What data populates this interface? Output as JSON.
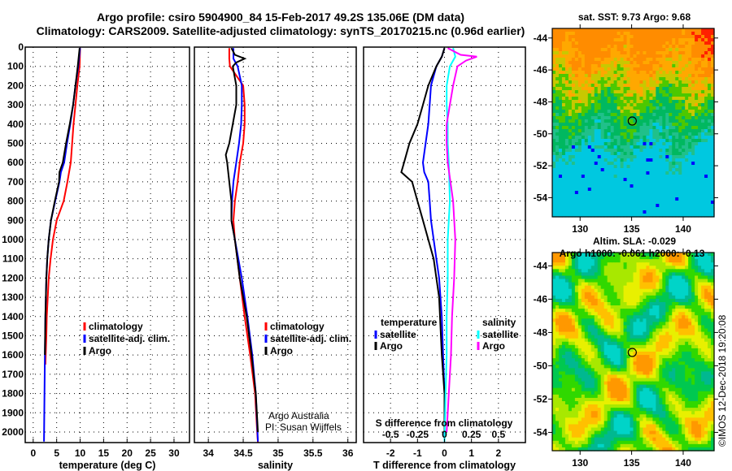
{
  "title_line1": "Argo profile: csiro 5904900_84 15-Feb-2017 49.2S 135.06E (DM data)",
  "title_line2": "Climatology: CARS2009. Satellite-adjusted climatology: synTS_20170215.nc (0.96d earlier)",
  "credit": {
    "line1": "Argo Australia",
    "line2": "PI: Susan Wijffels"
  },
  "copyright": "©IMOS 12-Dec-2018 19:20:08",
  "colors": {
    "climatology": "#ff0000",
    "satellite": "#0000ff",
    "argo": "#000000",
    "sal_satellite": "#00ffff",
    "sal_argo": "#ff00ff"
  },
  "chart_data": [
    {
      "type": "line",
      "id": "temperature",
      "xlabel": "temperature (deg C)",
      "ylabel": "",
      "xlim": [
        -1.7,
        33.3
      ],
      "ylim": [
        0,
        2055
      ],
      "xticks": [
        0,
        5,
        10,
        15,
        20,
        25,
        30
      ],
      "yticks": [
        0,
        100,
        200,
        300,
        400,
        500,
        600,
        700,
        800,
        900,
        1000,
        1100,
        1200,
        1300,
        1400,
        1500,
        1600,
        1700,
        1800,
        1900,
        2000
      ],
      "grid": true,
      "legend_position": "bottom-right",
      "series": [
        {
          "name": "climatology",
          "color": "#ff0000",
          "depth": [
            5,
            100,
            200,
            300,
            400,
            500,
            600,
            700,
            800,
            900,
            1000,
            1100,
            1200,
            1300,
            1400,
            1500,
            1650
          ],
          "values": [
            10,
            9.9,
            9.4,
            9.0,
            8.6,
            8.3,
            8.0,
            7.3,
            6.5,
            5.0,
            4.2,
            3.7,
            3.3,
            3.1,
            2.9,
            2.8,
            2.6
          ]
        },
        {
          "name": "satellite-adj. clim.",
          "color": "#0000ff",
          "depth": [
            5,
            100,
            200,
            300,
            400,
            500,
            600,
            650,
            700,
            800,
            900,
            1000,
            1100,
            1200,
            1400,
            1600,
            1800,
            2050
          ],
          "values": [
            10,
            9.6,
            9.0,
            8.5,
            7.9,
            7.2,
            6.6,
            5.9,
            5.6,
            4.7,
            3.8,
            3.3,
            3.0,
            2.8,
            2.6,
            2.5,
            2.4,
            2.3
          ]
        },
        {
          "name": "Argo",
          "color": "#000000",
          "depth": [
            5,
            50,
            100,
            200,
            300,
            400,
            500,
            600,
            650,
            700,
            800,
            900,
            1000,
            1100,
            1200,
            1400,
            1600
          ],
          "values": [
            9.9,
            9.7,
            9.5,
            9.0,
            8.5,
            7.8,
            7.0,
            6.3,
            5.6,
            5.5,
            4.6,
            3.8,
            3.3,
            3.0,
            2.8,
            2.6,
            2.5
          ]
        }
      ]
    },
    {
      "type": "line",
      "id": "salinity",
      "xlabel": "salinity",
      "ylabel": "",
      "xlim": [
        33.8,
        36.12
      ],
      "ylim": [
        0,
        2055
      ],
      "xticks": [
        34,
        34.5,
        35,
        35.5,
        36
      ],
      "grid": true,
      "legend_position": "bottom-right",
      "series": [
        {
          "name": "climatology",
          "color": "#ff0000",
          "depth": [
            5,
            60,
            100,
            200,
            300,
            400,
            500,
            600,
            700,
            800,
            900,
            1000,
            1200,
            1400,
            1600,
            1800,
            2000,
            2055
          ],
          "values": [
            34.3,
            34.3,
            34.31,
            34.5,
            34.52,
            34.52,
            34.5,
            34.45,
            34.42,
            34.38,
            34.36,
            34.38,
            34.45,
            34.52,
            34.6,
            34.67,
            34.7,
            34.71
          ]
        },
        {
          "name": "satellite-adj. clim.",
          "color": "#0000ff",
          "depth": [
            5,
            60,
            100,
            200,
            300,
            400,
            500,
            600,
            700,
            800,
            900,
            1000,
            1200,
            1400,
            1600,
            1800,
            2050
          ],
          "values": [
            34.36,
            34.36,
            34.42,
            34.48,
            34.48,
            34.47,
            34.44,
            34.4,
            34.36,
            34.34,
            34.33,
            34.38,
            34.48,
            34.56,
            34.63,
            34.68,
            34.71
          ]
        },
        {
          "name": "Argo",
          "color": "#000000",
          "depth": [
            5,
            40,
            60,
            80,
            100,
            200,
            300,
            400,
            500,
            560,
            600,
            700,
            800,
            900,
            1000,
            1200,
            1400,
            1600,
            1800,
            2000
          ],
          "values": [
            34.33,
            34.38,
            34.52,
            34.4,
            34.35,
            34.4,
            34.4,
            34.35,
            34.3,
            34.25,
            34.27,
            34.3,
            34.33,
            34.33,
            34.38,
            34.45,
            34.55,
            34.62,
            34.68,
            34.71
          ]
        }
      ]
    },
    {
      "type": "line",
      "id": "difference",
      "xlabel": "T difference from climatology",
      "x2label": "S difference from climatology",
      "xlim": [
        -3,
        3
      ],
      "x2lim": [
        -0.75,
        0.75
      ],
      "ylim": [
        0,
        2055
      ],
      "xticks": [
        -2,
        -1,
        0,
        1,
        2
      ],
      "x2ticks": [
        -0.5,
        -0.25,
        0,
        0.25,
        0.5
      ],
      "x2ticklabels": [
        "-0.5",
        "-0.25",
        "0",
        "0.25",
        "0.5"
      ],
      "grid": true,
      "legend": {
        "temperature_title": "temperature",
        "salinity_title": "salinity",
        "satellite": "satellite",
        "argo": "Argo"
      },
      "series": [
        {
          "name": "T satellite",
          "axis": "T",
          "color": "#0000ff",
          "depth": [
            5,
            50,
            100,
            200,
            300,
            400,
            500,
            600,
            650,
            700,
            800,
            900,
            1000,
            1100,
            1200,
            1400,
            1600,
            1800,
            2050
          ],
          "values": [
            0,
            -0.1,
            -0.3,
            -0.5,
            -0.55,
            -0.6,
            -0.7,
            -0.8,
            -0.75,
            -0.6,
            -0.55,
            -0.5,
            -0.4,
            -0.3,
            -0.2,
            -0.1,
            -0.05,
            0,
            0
          ]
        },
        {
          "name": "T Argo",
          "axis": "T",
          "color": "#000000",
          "depth": [
            5,
            50,
            100,
            200,
            300,
            400,
            500,
            600,
            650,
            700,
            800,
            900,
            1000,
            1100,
            1200,
            1300,
            1600,
            1800,
            2000
          ],
          "values": [
            0,
            -0.1,
            -0.3,
            -0.6,
            -0.8,
            -1.0,
            -1.3,
            -1.5,
            -1.6,
            -1.2,
            -1.0,
            -0.8,
            -0.6,
            -0.4,
            -0.3,
            -0.2,
            -0.1,
            0,
            0
          ]
        },
        {
          "name": "S satellite",
          "axis": "S",
          "color": "#00ffff",
          "depth": [
            5,
            50,
            100,
            200,
            300,
            400,
            500,
            600,
            800,
            1000,
            1200,
            1400,
            1600,
            1800,
            2050
          ],
          "values": [
            0.08,
            0.1,
            0.05,
            0.02,
            0.02,
            0.03,
            0.03,
            0.04,
            0.05,
            0.03,
            0.03,
            0.02,
            0.02,
            0.01,
            0
          ]
        },
        {
          "name": "S Argo",
          "axis": "S",
          "color": "#ff00ff",
          "depth": [
            5,
            40,
            50,
            70,
            100,
            200,
            300,
            400,
            500,
            600,
            800,
            1000,
            1200,
            1400,
            1600,
            1800,
            2000
          ],
          "values": [
            0.03,
            0.15,
            0.3,
            0.2,
            0.12,
            0.08,
            0.05,
            0.02,
            0.02,
            0.03,
            0.08,
            0.1,
            0.09,
            0.07,
            0.06,
            0.04,
            0.02
          ]
        }
      ]
    },
    {
      "type": "heatmap",
      "id": "sst-map",
      "title": "sat. SST: 9.73 Argo: 9.68",
      "xlim": [
        127.3,
        143
      ],
      "ylim": [
        -55.2,
        -43.4
      ],
      "xticks": [
        130,
        135,
        140
      ],
      "yticks": [
        -44,
        -46,
        -48,
        -50,
        -52,
        -54
      ],
      "marker": {
        "lon": 135.06,
        "lat": -49.2
      }
    },
    {
      "type": "heatmap",
      "id": "sla-map",
      "title": "Altim. SLA: -0.029",
      "subtitle": "Argo h1000: -0.061 h2000: -0.13",
      "xlim": [
        127.3,
        143
      ],
      "ylim": [
        -55.1,
        -43.2
      ],
      "xticks": [
        130,
        135,
        140
      ],
      "yticks": [
        -44,
        -46,
        -48,
        -50,
        -52,
        -54
      ],
      "marker": {
        "lon": 135.06,
        "lat": -49.2
      }
    }
  ]
}
